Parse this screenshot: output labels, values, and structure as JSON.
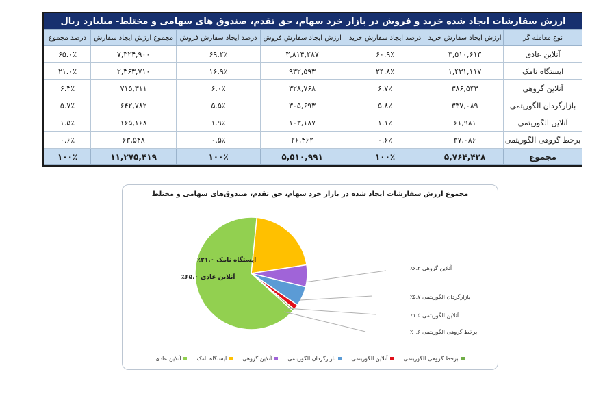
{
  "table": {
    "title": "ارزش سفارشات ایجاد شده خرید و فروش در بازار خرد سهام، حق تقدم، صندوق های سهامی و مختلط- میلیارد ریال",
    "headers": [
      "نوع معامله گر",
      "ارزش ایجاد سفارش خرید",
      "درصد ایجاد سفارش خرید",
      "ارزش ایجاد سفارش فروش",
      "درصد ایجاد سفارش فروش",
      "مجموع ارزش ایجاد سفارش",
      "درصد مجموع"
    ],
    "rows": [
      [
        "آنلاین عادی",
        "۳,۵۱۰,۶۱۳",
        "۶۰.۹٪",
        "۳,۸۱۴,۲۸۷",
        "۶۹.۲٪",
        "۷,۳۲۴,۹۰۰",
        "۶۵.۰٪"
      ],
      [
        "ایستگاه نامک",
        "۱,۴۳۱,۱۱۷",
        "۲۴.۸٪",
        "۹۳۲,۵۹۳",
        "۱۶.۹٪",
        "۲,۳۶۳,۷۱۰",
        "۲۱.۰٪"
      ],
      [
        "آنلاین گروهی",
        "۳۸۶,۵۴۳",
        "۶.۷٪",
        "۳۲۸,۷۶۸",
        "۶.۰٪",
        "۷۱۵,۳۱۱",
        "۶.۳٪"
      ],
      [
        "بازارگردان الگوریتمی",
        "۳۳۷,۰۸۹",
        "۵.۸٪",
        "۳۰۵,۶۹۳",
        "۵.۵٪",
        "۶۴۲,۷۸۲",
        "۵.۷٪"
      ],
      [
        "آنلاین الگوریتمی",
        "۶۱,۹۸۱",
        "۱.۱٪",
        "۱۰۳,۱۸۷",
        "۱.۹٪",
        "۱۶۵,۱۶۸",
        "۱.۵٪"
      ],
      [
        "برخط گروهی الگوریتمی",
        "۳۷,۰۸۶",
        "۰.۶٪",
        "۲۶,۴۶۲",
        "۰.۵٪",
        "۶۳,۵۴۸",
        "۰.۶٪"
      ]
    ],
    "total": [
      "مجموع",
      "۵,۷۶۴,۴۲۸",
      "۱۰۰٪",
      "۵,۵۱۰,۹۹۱",
      "۱۰۰٪",
      "۱۱,۲۷۵,۴۱۹",
      "۱۰۰٪"
    ]
  },
  "chart": {
    "title": "مجموع ارزش سفارشات ایجاد شده در بازار خرد سهام، حق تقدم، صندوق‌های سهامی و مختلط",
    "data_labels": [
      "آنلاین عادی ۶۵.۰٪",
      "ایستگاه نامک ۲۱.۰٪",
      "آنلاین گروهی ۶.۳٪",
      "بازارگردان الگوریتمی ۵.۷٪",
      "آنلاین الگوریتمی ۱.۵٪",
      "برخط گروهی الگوریتمی ۰.۶٪"
    ],
    "legend": [
      {
        "label": "برخط گروهی الگوریتمی",
        "color": "#70ad47"
      },
      {
        "label": "آنلاین الگوریتمی",
        "color": "#e0101a"
      },
      {
        "label": "بازارگردان الگوریتمی",
        "color": "#5b9bd5"
      },
      {
        "label": "آنلاین گروهی",
        "color": "#a064d8"
      },
      {
        "label": "ایستگاه نامک",
        "color": "#ffc000"
      },
      {
        "label": "آنلاین عادی",
        "color": "#92d050"
      }
    ]
  },
  "chart_data": {
    "type": "pie",
    "title": "مجموع ارزش سفارشات ایجاد شده در بازار خرد سهام، حق تقدم، صندوق‌های سهامی و مختلط",
    "categories": [
      "ایستگاه نامک",
      "آنلاین گروهی",
      "بازارگردان الگوریتمی",
      "آنلاین الگوریتمی",
      "برخط گروهی الگوریتمی",
      "آنلاین عادی"
    ],
    "values": [
      21.0,
      6.3,
      5.7,
      1.5,
      0.6,
      65.0
    ],
    "colors": [
      "#ffc000",
      "#a064d8",
      "#5b9bd5",
      "#e0101a",
      "#70ad47",
      "#92d050"
    ],
    "unit": "%",
    "legend_position": "bottom"
  }
}
